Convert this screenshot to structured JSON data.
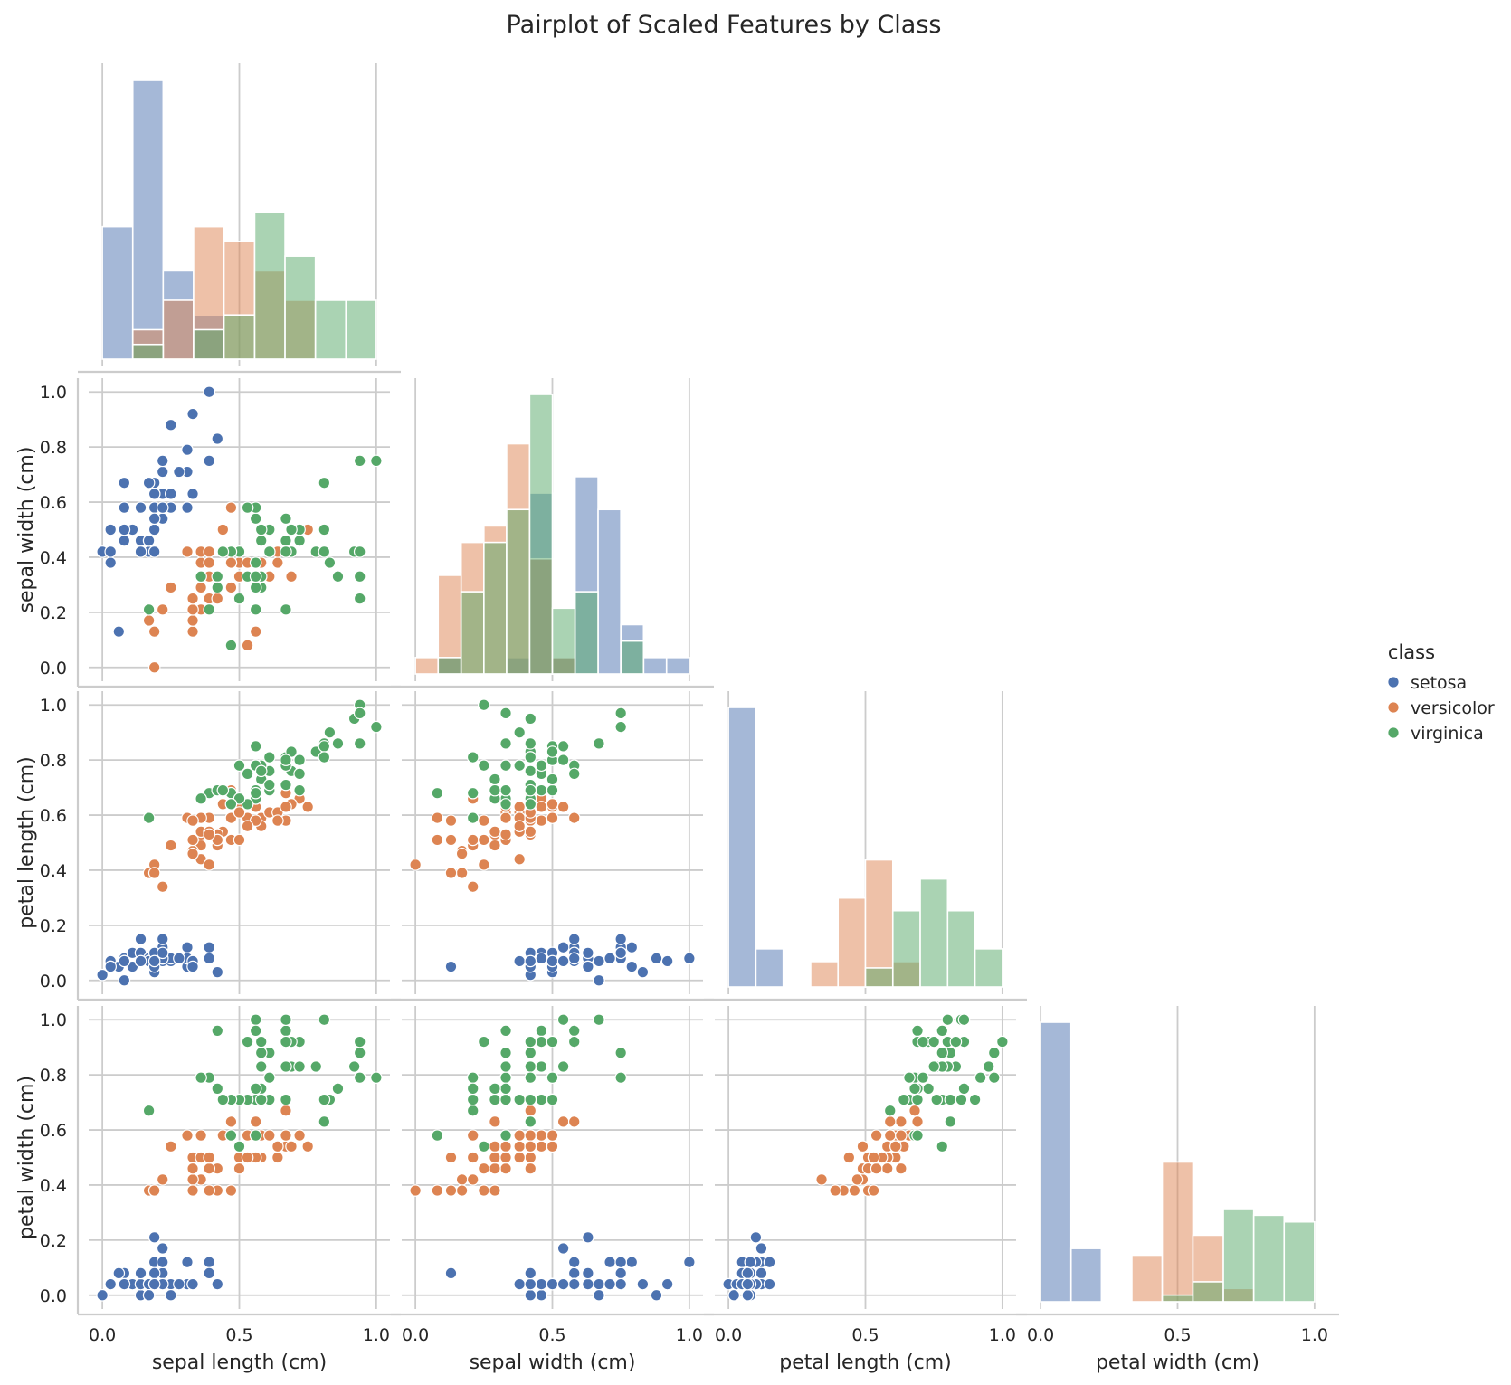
{
  "figure": {
    "title": "Pairplot of Scaled Features by Class"
  },
  "legend": {
    "title": "class",
    "placement": "right-center",
    "items": [
      {
        "label": "setosa",
        "color": "#4c72b0"
      },
      {
        "label": "versicolor",
        "color": "#dd8452"
      },
      {
        "label": "virginica",
        "color": "#55a868"
      }
    ]
  },
  "chart_data": {
    "type": "scatter",
    "layout": "pairplot-corner",
    "features": [
      "sepal length (cm)",
      "sepal width (cm)",
      "petal length (cm)",
      "petal width (cm)"
    ],
    "axis_range": [
      -0.05,
      1.05
    ],
    "x_ticks": [
      "0.0",
      "0.5",
      "1.0"
    ],
    "y_ticks": [
      "0.0",
      "0.2",
      "0.4",
      "0.6",
      "0.8",
      "1.0"
    ],
    "grid": true,
    "classes": [
      "setosa",
      "versicolor",
      "virginica"
    ],
    "colors": {
      "setosa": "#4c72b0",
      "versicolor": "#dd8452",
      "virginica": "#55a868"
    },
    "histograms": [
      {
        "feature": "sepal length (cm)",
        "bins": [
          0.0,
          0.111,
          0.222,
          0.333,
          0.444,
          0.556,
          0.667,
          0.778,
          0.889,
          1.0
        ],
        "counts": {
          "setosa": [
            9,
            19,
            6,
            3,
            0,
            0,
            0,
            0,
            0
          ],
          "versicolor": [
            0,
            2,
            4,
            9,
            8,
            6,
            4,
            0,
            0
          ],
          "virginica": [
            0,
            1,
            0,
            2,
            3,
            10,
            7,
            4,
            4
          ]
        }
      },
      {
        "feature": "sepal width (cm)",
        "bins": [
          0.0,
          0.083,
          0.167,
          0.25,
          0.333,
          0.417,
          0.5,
          0.583,
          0.667,
          0.75,
          0.833,
          0.917,
          1.0
        ],
        "counts": {
          "setosa": [
            0,
            1,
            0,
            0,
            1,
            11,
            1,
            12,
            10,
            3,
            1,
            1
          ],
          "versicolor": [
            1,
            6,
            8,
            9,
            14,
            7,
            1,
            0,
            0,
            0,
            0,
            0
          ],
          "virginica": [
            0,
            1,
            5,
            8,
            10,
            17,
            4,
            5,
            0,
            2,
            0,
            0
          ]
        }
      },
      {
        "feature": "petal length (cm)",
        "bins": [
          0.0,
          0.1,
          0.2,
          0.3,
          0.4,
          0.5,
          0.6,
          0.7,
          0.8,
          0.9,
          1.0
        ],
        "counts": {
          "setosa": [
            44,
            6,
            0,
            0,
            0,
            0,
            0,
            0,
            0,
            0
          ],
          "versicolor": [
            0,
            0,
            0,
            4,
            14,
            20,
            4,
            0,
            0,
            0
          ],
          "virginica": [
            0,
            0,
            0,
            0,
            0,
            3,
            12,
            17,
            12,
            6
          ]
        }
      },
      {
        "feature": "petal width (cm)",
        "bins": [
          0.0,
          0.111,
          0.222,
          0.333,
          0.444,
          0.556,
          0.667,
          0.778,
          0.889,
          1.0
        ],
        "counts": {
          "setosa": [
            42,
            8,
            0,
            0,
            0,
            0,
            0,
            0,
            0
          ],
          "versicolor": [
            0,
            0,
            0,
            7,
            21,
            10,
            2,
            0,
            0
          ],
          "virginica": [
            0,
            0,
            0,
            0,
            1,
            3,
            14,
            13,
            12
          ]
        }
      }
    ],
    "points": {
      "setosa": [
        [
          0.22,
          0.63,
          0.07,
          0.04
        ],
        [
          0.17,
          0.42,
          0.07,
          0.04
        ],
        [
          0.11,
          0.5,
          0.05,
          0.04
        ],
        [
          0.08,
          0.46,
          0.08,
          0.04
        ],
        [
          0.19,
          0.67,
          0.07,
          0.04
        ],
        [
          0.31,
          0.79,
          0.12,
          0.12
        ],
        [
          0.08,
          0.58,
          0.07,
          0.08
        ],
        [
          0.19,
          0.58,
          0.08,
          0.04
        ],
        [
          0.03,
          0.38,
          0.07,
          0.04
        ],
        [
          0.17,
          0.46,
          0.08,
          0.0
        ],
        [
          0.31,
          0.71,
          0.08,
          0.04
        ],
        [
          0.14,
          0.58,
          0.1,
          0.04
        ],
        [
          0.14,
          0.42,
          0.07,
          0.0
        ],
        [
          0.0,
          0.42,
          0.02,
          0.0
        ],
        [
          0.42,
          0.83,
          0.03,
          0.04
        ],
        [
          0.39,
          1.0,
          0.08,
          0.12
        ],
        [
          0.31,
          0.79,
          0.05,
          0.12
        ],
        [
          0.22,
          0.63,
          0.07,
          0.08
        ],
        [
          0.39,
          0.75,
          0.12,
          0.08
        ],
        [
          0.22,
          0.75,
          0.08,
          0.08
        ],
        [
          0.31,
          0.58,
          0.12,
          0.04
        ],
        [
          0.22,
          0.71,
          0.08,
          0.12
        ],
        [
          0.08,
          0.67,
          0.0,
          0.04
        ],
        [
          0.22,
          0.54,
          0.12,
          0.17
        ],
        [
          0.14,
          0.58,
          0.15,
          0.04
        ],
        [
          0.19,
          0.42,
          0.1,
          0.04
        ],
        [
          0.19,
          0.58,
          0.1,
          0.12
        ],
        [
          0.25,
          0.63,
          0.08,
          0.04
        ],
        [
          0.25,
          0.58,
          0.07,
          0.04
        ],
        [
          0.11,
          0.5,
          0.1,
          0.04
        ],
        [
          0.14,
          0.46,
          0.1,
          0.04
        ],
        [
          0.31,
          0.58,
          0.08,
          0.12
        ],
        [
          0.25,
          0.88,
          0.08,
          0.0
        ],
        [
          0.33,
          0.92,
          0.07,
          0.04
        ],
        [
          0.17,
          0.46,
          0.08,
          0.04
        ],
        [
          0.19,
          0.5,
          0.03,
          0.04
        ],
        [
          0.33,
          0.63,
          0.05,
          0.04
        ],
        [
          0.17,
          0.67,
          0.07,
          0.0
        ],
        [
          0.03,
          0.42,
          0.05,
          0.04
        ],
        [
          0.22,
          0.58,
          0.08,
          0.04
        ],
        [
          0.19,
          0.63,
          0.05,
          0.08
        ],
        [
          0.06,
          0.13,
          0.05,
          0.08
        ],
        [
          0.03,
          0.5,
          0.05,
          0.04
        ],
        [
          0.19,
          0.63,
          0.1,
          0.21
        ],
        [
          0.22,
          0.75,
          0.15,
          0.12
        ],
        [
          0.14,
          0.42,
          0.07,
          0.08
        ],
        [
          0.22,
          0.75,
          0.1,
          0.04
        ],
        [
          0.08,
          0.5,
          0.07,
          0.04
        ],
        [
          0.28,
          0.71,
          0.08,
          0.04
        ],
        [
          0.19,
          0.54,
          0.07,
          0.04
        ]
      ],
      "versicolor": [
        [
          0.75,
          0.5,
          0.63,
          0.54
        ],
        [
          0.58,
          0.5,
          0.59,
          0.58
        ],
        [
          0.72,
          0.46,
          0.66,
          0.58
        ],
        [
          0.33,
          0.13,
          0.51,
          0.5
        ],
        [
          0.61,
          0.33,
          0.61,
          0.58
        ],
        [
          0.39,
          0.33,
          0.59,
          0.5
        ],
        [
          0.56,
          0.54,
          0.63,
          0.63
        ],
        [
          0.17,
          0.17,
          0.39,
          0.38
        ],
        [
          0.64,
          0.38,
          0.61,
          0.5
        ],
        [
          0.25,
          0.29,
          0.49,
          0.54
        ],
        [
          0.19,
          0.0,
          0.42,
          0.38
        ],
        [
          0.44,
          0.42,
          0.54,
          0.58
        ],
        [
          0.47,
          0.08,
          0.51,
          0.38
        ],
        [
          0.5,
          0.38,
          0.63,
          0.54
        ],
        [
          0.36,
          0.38,
          0.44,
          0.5
        ],
        [
          0.67,
          0.46,
          0.58,
          0.54
        ],
        [
          0.36,
          0.42,
          0.59,
          0.58
        ],
        [
          0.42,
          0.29,
          0.53,
          0.38
        ],
        [
          0.53,
          0.08,
          0.59,
          0.58
        ],
        [
          0.36,
          0.21,
          0.49,
          0.42
        ],
        [
          0.44,
          0.5,
          0.64,
          0.71
        ],
        [
          0.5,
          0.33,
          0.51,
          0.5
        ],
        [
          0.56,
          0.21,
          0.66,
          0.58
        ],
        [
          0.5,
          0.33,
          0.63,
          0.46
        ],
        [
          0.58,
          0.38,
          0.56,
          0.5
        ],
        [
          0.64,
          0.42,
          0.58,
          0.54
        ],
        [
          0.69,
          0.33,
          0.64,
          0.54
        ],
        [
          0.67,
          0.42,
          0.68,
          0.67
        ],
        [
          0.47,
          0.38,
          0.59,
          0.58
        ],
        [
          0.39,
          0.25,
          0.42,
          0.38
        ],
        [
          0.33,
          0.17,
          0.47,
          0.42
        ],
        [
          0.33,
          0.17,
          0.46,
          0.38
        ],
        [
          0.42,
          0.29,
          0.49,
          0.46
        ],
        [
          0.47,
          0.29,
          0.69,
          0.63
        ],
        [
          0.31,
          0.42,
          0.59,
          0.58
        ],
        [
          0.47,
          0.58,
          0.59,
          0.63
        ],
        [
          0.67,
          0.46,
          0.63,
          0.58
        ],
        [
          0.56,
          0.13,
          0.58,
          0.5
        ],
        [
          0.36,
          0.42,
          0.53,
          0.5
        ],
        [
          0.33,
          0.21,
          0.51,
          0.5
        ],
        [
          0.33,
          0.25,
          0.58,
          0.46
        ],
        [
          0.5,
          0.42,
          0.61,
          0.54
        ],
        [
          0.42,
          0.25,
          0.51,
          0.46
        ],
        [
          0.19,
          0.13,
          0.39,
          0.38
        ],
        [
          0.36,
          0.29,
          0.54,
          0.5
        ],
        [
          0.39,
          0.42,
          0.54,
          0.46
        ],
        [
          0.39,
          0.38,
          0.54,
          0.5
        ],
        [
          0.53,
          0.38,
          0.56,
          0.5
        ],
        [
          0.22,
          0.21,
          0.34,
          0.42
        ],
        [
          0.39,
          0.33,
          0.53,
          0.5
        ]
      ],
      "virginica": [
        [
          0.56,
          0.54,
          0.85,
          1.0
        ],
        [
          0.42,
          0.29,
          0.69,
          0.75
        ],
        [
          0.78,
          0.42,
          0.83,
          0.83
        ],
        [
          0.56,
          0.38,
          0.78,
          0.71
        ],
        [
          0.61,
          0.42,
          0.81,
          0.88
        ],
        [
          0.92,
          0.42,
          0.95,
          0.83
        ],
        [
          0.17,
          0.21,
          0.59,
          0.67
        ],
        [
          0.83,
          0.38,
          0.9,
          0.71
        ],
        [
          0.67,
          0.21,
          0.81,
          0.71
        ],
        [
          0.81,
          0.67,
          0.86,
          1.0
        ],
        [
          0.61,
          0.5,
          0.69,
          0.79
        ],
        [
          0.58,
          0.29,
          0.73,
          0.75
        ],
        [
          0.69,
          0.42,
          0.76,
          0.83
        ],
        [
          0.39,
          0.21,
          0.68,
          0.79
        ],
        [
          0.42,
          0.33,
          0.69,
          0.96
        ],
        [
          0.58,
          0.5,
          0.73,
          0.92
        ],
        [
          0.61,
          0.42,
          0.76,
          0.71
        ],
        [
          0.94,
          0.75,
          0.97,
          0.88
        ],
        [
          0.94,
          0.25,
          1.0,
          0.92
        ],
        [
          0.47,
          0.08,
          0.68,
          0.58
        ],
        [
          0.72,
          0.5,
          0.8,
          0.92
        ],
        [
          0.36,
          0.33,
          0.66,
          0.79
        ],
        [
          0.94,
          0.33,
          0.97,
          0.79
        ],
        [
          0.56,
          0.29,
          0.66,
          0.71
        ],
        [
          0.67,
          0.54,
          0.8,
          0.83
        ],
        [
          0.81,
          0.5,
          0.85,
          0.71
        ],
        [
          0.53,
          0.33,
          0.64,
          0.71
        ],
        [
          0.5,
          0.42,
          0.66,
          0.71
        ],
        [
          0.58,
          0.33,
          0.78,
          0.83
        ],
        [
          0.81,
          0.42,
          0.81,
          0.63
        ],
        [
          0.86,
          0.33,
          0.86,
          0.75
        ],
        [
          1.0,
          0.75,
          0.92,
          0.79
        ],
        [
          0.58,
          0.33,
          0.78,
          0.88
        ],
        [
          0.56,
          0.33,
          0.69,
          0.58
        ],
        [
          0.5,
          0.25,
          0.78,
          0.54
        ],
        [
          0.94,
          0.42,
          0.86,
          0.92
        ],
        [
          0.56,
          0.58,
          0.78,
          0.96
        ],
        [
          0.58,
          0.46,
          0.76,
          0.71
        ],
        [
          0.47,
          0.42,
          0.64,
          0.71
        ],
        [
          0.72,
          0.46,
          0.75,
          0.83
        ],
        [
          0.67,
          0.46,
          0.78,
          0.96
        ],
        [
          0.72,
          0.46,
          0.69,
          0.92
        ],
        [
          0.42,
          0.29,
          0.69,
          0.75
        ],
        [
          0.69,
          0.5,
          0.83,
          0.92
        ],
        [
          0.67,
          0.54,
          0.8,
          1.0
        ],
        [
          0.67,
          0.42,
          0.71,
          0.92
        ],
        [
          0.56,
          0.21,
          0.68,
          0.75
        ],
        [
          0.61,
          0.42,
          0.71,
          0.79
        ],
        [
          0.53,
          0.58,
          0.75,
          0.92
        ],
        [
          0.44,
          0.42,
          0.69,
          0.71
        ]
      ]
    }
  }
}
